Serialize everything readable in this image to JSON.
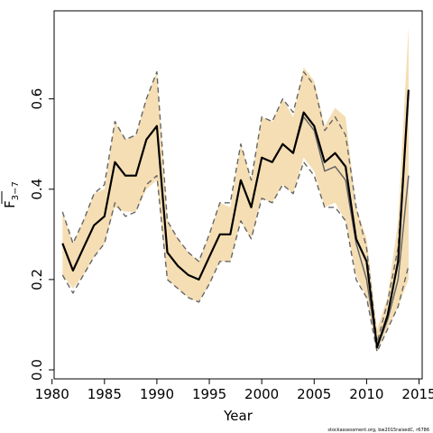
{
  "chart_data": {
    "type": "line",
    "title": "",
    "xlabel": "Year",
    "ylabel": "F̅ 3–7",
    "ylabel_main": "F",
    "ylabel_sub": "3−7",
    "xlim": [
      1980.2,
      2015.3
    ],
    "ylim": [
      -0.02,
      0.795
    ],
    "xticks": [
      1980,
      1985,
      1990,
      1995,
      2000,
      2005,
      2010,
      2015
    ],
    "yticks": [
      0.0,
      0.2,
      0.4,
      0.6
    ],
    "ytick_labels": [
      "0.0",
      "0.2",
      "0.4",
      "0.6"
    ],
    "grid": false,
    "legend": "none",
    "source_note": "stockassessment.org, bw2015raisedC, r6786",
    "colors": {
      "band": "#f5deb3",
      "main_line": "#000000",
      "prev_line": "#666666",
      "prev_bounds": "#666666"
    },
    "x": [
      1981,
      1982,
      1983,
      1984,
      1985,
      1986,
      1987,
      1988,
      1989,
      1990,
      1991,
      1992,
      1993,
      1994,
      1995,
      1996,
      1997,
      1998,
      1999,
      2000,
      2001,
      2002,
      2003,
      2004,
      2005,
      2006,
      2007,
      2008,
      2009,
      2010,
      2011,
      2012,
      2013,
      2014
    ],
    "series": [
      {
        "role": "confidence-band",
        "lower": [
          0.21,
          0.18,
          0.21,
          0.25,
          0.28,
          0.36,
          0.35,
          0.35,
          0.4,
          0.42,
          0.2,
          0.18,
          0.16,
          0.15,
          0.19,
          0.24,
          0.24,
          0.33,
          0.29,
          0.38,
          0.37,
          0.41,
          0.39,
          0.47,
          0.44,
          0.36,
          0.37,
          0.33,
          0.21,
          0.16,
          0.04,
          0.09,
          0.14,
          0.2
        ],
        "upper": [
          0.35,
          0.28,
          0.33,
          0.39,
          0.4,
          0.55,
          0.51,
          0.52,
          0.6,
          0.66,
          0.33,
          0.29,
          0.26,
          0.24,
          0.3,
          0.37,
          0.36,
          0.5,
          0.42,
          0.56,
          0.55,
          0.6,
          0.56,
          0.67,
          0.64,
          0.54,
          0.58,
          0.56,
          0.36,
          0.29,
          0.09,
          0.16,
          0.33,
          0.76
        ]
      },
      {
        "role": "current-estimate",
        "values": [
          0.28,
          0.22,
          0.27,
          0.32,
          0.34,
          0.46,
          0.43,
          0.43,
          0.51,
          0.54,
          0.26,
          0.23,
          0.21,
          0.2,
          0.25,
          0.3,
          0.3,
          0.42,
          0.36,
          0.47,
          0.46,
          0.5,
          0.48,
          0.57,
          0.54,
          0.46,
          0.48,
          0.45,
          0.29,
          0.24,
          0.05,
          0.12,
          0.24,
          0.62
        ]
      },
      {
        "role": "previous-estimate",
        "values": [
          0.28,
          0.22,
          0.27,
          0.32,
          0.34,
          0.46,
          0.43,
          0.43,
          0.51,
          0.54,
          0.26,
          0.23,
          0.21,
          0.2,
          0.25,
          0.3,
          0.3,
          0.42,
          0.36,
          0.47,
          0.46,
          0.5,
          0.48,
          0.56,
          0.53,
          0.44,
          0.45,
          0.42,
          0.28,
          0.2,
          0.05,
          0.11,
          0.2,
          0.43
        ]
      },
      {
        "role": "previous-lower",
        "values": [
          0.21,
          0.17,
          0.21,
          0.25,
          0.28,
          0.37,
          0.34,
          0.35,
          0.41,
          0.43,
          0.2,
          0.18,
          0.16,
          0.15,
          0.19,
          0.24,
          0.24,
          0.33,
          0.29,
          0.38,
          0.37,
          0.41,
          0.39,
          0.46,
          0.43,
          0.36,
          0.36,
          0.33,
          0.2,
          0.16,
          0.04,
          0.09,
          0.14,
          0.23
        ]
      },
      {
        "role": "previous-upper",
        "values": [
          0.35,
          0.28,
          0.33,
          0.39,
          0.41,
          0.55,
          0.51,
          0.52,
          0.6,
          0.66,
          0.33,
          0.29,
          0.26,
          0.24,
          0.3,
          0.37,
          0.37,
          0.5,
          0.42,
          0.56,
          0.55,
          0.6,
          0.57,
          0.66,
          0.63,
          0.53,
          0.56,
          0.52,
          0.36,
          0.27,
          0.06,
          0.15,
          0.27,
          0.61
        ]
      }
    ]
  }
}
